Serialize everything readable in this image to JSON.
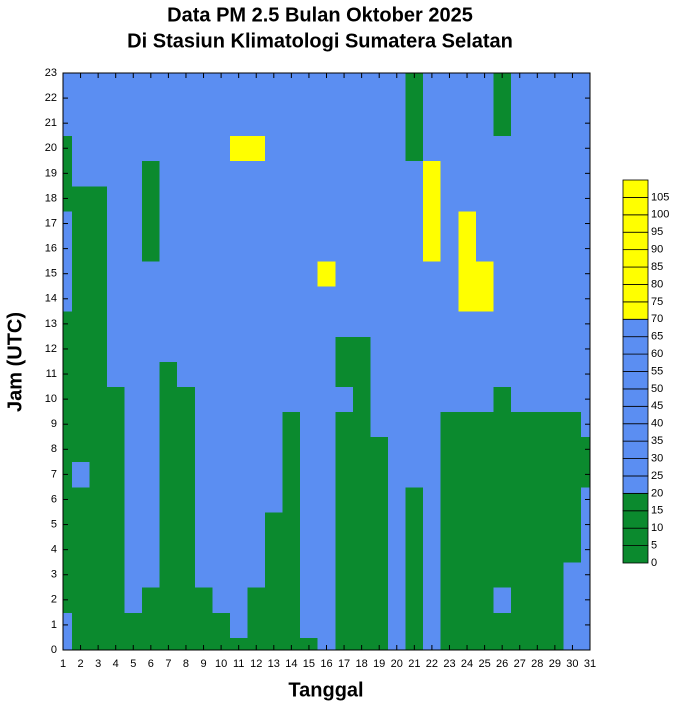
{
  "chart_data": {
    "type": "contour",
    "title": "Data PM 2.5 Bulan Oktober 2025",
    "subtitle": "Di Stasiun Klimatologi Sumatera Selatan",
    "x_label": "Tanggal",
    "y_label": "Jam (UTC)",
    "x": [
      1,
      2,
      3,
      4,
      5,
      6,
      7,
      8,
      9,
      10,
      11,
      12,
      13,
      14,
      15,
      16,
      17,
      18,
      19,
      20,
      21,
      22,
      23,
      24,
      25,
      26,
      27,
      28,
      29,
      30,
      31
    ],
    "y": [
      0,
      1,
      2,
      3,
      4,
      5,
      6,
      7,
      8,
      9,
      10,
      11,
      12,
      13,
      14,
      15,
      16,
      17,
      18,
      19,
      20,
      21,
      22,
      23
    ],
    "xlim": [
      1,
      31
    ],
    "ylim": [
      0,
      23
    ],
    "xticks": [
      1,
      2,
      3,
      4,
      5,
      6,
      7,
      8,
      9,
      10,
      11,
      12,
      13,
      14,
      15,
      16,
      17,
      18,
      19,
      20,
      21,
      22,
      23,
      24,
      25,
      26,
      27,
      28,
      29,
      30,
      31
    ],
    "yticks": [
      0,
      1,
      2,
      3,
      4,
      5,
      6,
      7,
      8,
      9,
      10,
      11,
      12,
      13,
      14,
      15,
      16,
      17,
      18,
      19,
      20,
      21,
      22,
      23
    ],
    "levels": [
      0,
      5,
      10,
      15,
      20,
      25,
      30,
      35,
      40,
      45,
      50,
      55,
      60,
      65,
      70,
      75,
      80,
      85,
      90,
      95,
      100,
      105
    ],
    "level_colors": [
      "#0b8a2e",
      "#0b8a2e",
      "#0b8a2e",
      "#0b8a2e",
      "#5b8ef2",
      "#5b8ef2",
      "#5b8ef2",
      "#5b8ef2",
      "#5b8ef2",
      "#5b8ef2",
      "#5b8ef2",
      "#5b8ef2",
      "#5b8ef2",
      "#5b8ef2",
      "#ffff00",
      "#ffff00",
      "#ffff00",
      "#ffff00",
      "#ffff00",
      "#ffff00",
      "#ffff00",
      "#ffff00"
    ],
    "z": [
      [
        25,
        12,
        10,
        3,
        14,
        15,
        14,
        12,
        6,
        12,
        18,
        14,
        14,
        18,
        16,
        22,
        14,
        15,
        16,
        30,
        15,
        22,
        14,
        4,
        15,
        16,
        14,
        14,
        15,
        28,
        26
      ],
      [
        22,
        12,
        11,
        8,
        15,
        16,
        15,
        13,
        12,
        18,
        22,
        16,
        15,
        18,
        22,
        26,
        15,
        15,
        17,
        32,
        16,
        24,
        15,
        10,
        15,
        17,
        15,
        15,
        16,
        30,
        28
      ],
      [
        18,
        12,
        12,
        12,
        22,
        18,
        15,
        14,
        16,
        22,
        28,
        18,
        15,
        18,
        25,
        30,
        16,
        16,
        18,
        34,
        17,
        26,
        16,
        14,
        18,
        22,
        16,
        15,
        16,
        32,
        30
      ],
      [
        17,
        13,
        13,
        14,
        28,
        22,
        16,
        15,
        22,
        26,
        30,
        22,
        16,
        18,
        28,
        32,
        17,
        16,
        18,
        35,
        18,
        28,
        17,
        15,
        17,
        16,
        16,
        15,
        16,
        22,
        32
      ],
      [
        16,
        13,
        14,
        15,
        30,
        26,
        16,
        15,
        26,
        30,
        32,
        26,
        17,
        18,
        30,
        34,
        17,
        16,
        18,
        34,
        18,
        30,
        18,
        16,
        18,
        17,
        16,
        16,
        17,
        18,
        30
      ],
      [
        16,
        14,
        14,
        16,
        32,
        28,
        17,
        16,
        28,
        32,
        34,
        28,
        18,
        18,
        32,
        35,
        18,
        17,
        18,
        33,
        18,
        30,
        18,
        16,
        17,
        17,
        16,
        16,
        17,
        16,
        26
      ],
      [
        16,
        16,
        14,
        17,
        32,
        30,
        17,
        16,
        30,
        33,
        35,
        30,
        20,
        18,
        30,
        34,
        18,
        17,
        18,
        32,
        19,
        30,
        18,
        16,
        17,
        17,
        17,
        16,
        17,
        16,
        20
      ],
      [
        17,
        24,
        15,
        18,
        30,
        30,
        17,
        16,
        32,
        34,
        35,
        32,
        22,
        18,
        26,
        30,
        18,
        17,
        18,
        30,
        20,
        30,
        18,
        17,
        17,
        17,
        17,
        17,
        17,
        16,
        18
      ],
      [
        17,
        16,
        15,
        18,
        28,
        28,
        17,
        16,
        32,
        34,
        36,
        34,
        24,
        19,
        24,
        26,
        18,
        18,
        19,
        28,
        22,
        30,
        18,
        17,
        17,
        17,
        17,
        17,
        17,
        17,
        18
      ],
      [
        17,
        16,
        15,
        18,
        26,
        26,
        17,
        17,
        33,
        35,
        36,
        35,
        26,
        19,
        22,
        24,
        19,
        18,
        22,
        26,
        24,
        32,
        19,
        18,
        18,
        17,
        17,
        18,
        18,
        18,
        24
      ],
      [
        18,
        16,
        16,
        18,
        26,
        24,
        18,
        17,
        34,
        36,
        38,
        36,
        28,
        20,
        24,
        26,
        20,
        19,
        26,
        24,
        26,
        34,
        24,
        22,
        20,
        18,
        24,
        30,
        28,
        28,
        30
      ],
      [
        18,
        17,
        16,
        20,
        28,
        26,
        18,
        20,
        36,
        38,
        40,
        38,
        30,
        20,
        26,
        28,
        18,
        16,
        30,
        26,
        25,
        36,
        28,
        28,
        24,
        20,
        28,
        34,
        32,
        30,
        32
      ],
      [
        18,
        17,
        16,
        24,
        30,
        28,
        22,
        26,
        38,
        40,
        42,
        40,
        34,
        22,
        30,
        32,
        18,
        16,
        32,
        28,
        24,
        40,
        34,
        40,
        30,
        22,
        30,
        34,
        32,
        30,
        32
      ],
      [
        18,
        17,
        17,
        26,
        32,
        30,
        26,
        30,
        40,
        42,
        44,
        42,
        38,
        30,
        36,
        40,
        22,
        20,
        34,
        30,
        22,
        44,
        40,
        60,
        50,
        26,
        30,
        32,
        30,
        28,
        32
      ],
      [
        20,
        17,
        18,
        28,
        34,
        32,
        30,
        34,
        40,
        44,
        46,
        44,
        40,
        36,
        40,
        50,
        30,
        26,
        36,
        30,
        20,
        48,
        46,
        70,
        85,
        32,
        34,
        30,
        28,
        26,
        30
      ],
      [
        30,
        18,
        18,
        30,
        36,
        34,
        32,
        36,
        42,
        46,
        48,
        46,
        44,
        40,
        46,
        72,
        34,
        28,
        36,
        28,
        20,
        55,
        55,
        75,
        70,
        36,
        36,
        28,
        26,
        24,
        30
      ],
      [
        34,
        18,
        18,
        30,
        36,
        16,
        30,
        38,
        44,
        46,
        48,
        46,
        44,
        42,
        48,
        60,
        36,
        30,
        34,
        26,
        20,
        78,
        60,
        90,
        60,
        34,
        30,
        26,
        24,
        22,
        28
      ],
      [
        24,
        17,
        18,
        30,
        34,
        12,
        28,
        40,
        46,
        48,
        50,
        48,
        46,
        40,
        46,
        50,
        38,
        32,
        34,
        26,
        20,
        70,
        54,
        75,
        50,
        32,
        28,
        24,
        22,
        20,
        26
      ],
      [
        18,
        17,
        18,
        30,
        30,
        12,
        26,
        42,
        46,
        50,
        54,
        50,
        46,
        38,
        42,
        44,
        38,
        34,
        34,
        26,
        20,
        90,
        50,
        50,
        40,
        28,
        26,
        22,
        20,
        20,
        26
      ],
      [
        16,
        20,
        20,
        30,
        30,
        14,
        26,
        42,
        46,
        50,
        60,
        62,
        48,
        36,
        40,
        40,
        36,
        34,
        34,
        26,
        20,
        95,
        48,
        44,
        34,
        24,
        24,
        22,
        20,
        22,
        28
      ],
      [
        18,
        30,
        26,
        30,
        28,
        22,
        28,
        40,
        44,
        50,
        72,
        95,
        50,
        36,
        38,
        22,
        36,
        34,
        32,
        28,
        18,
        60,
        44,
        38,
        26,
        20,
        22,
        24,
        22,
        24,
        30
      ],
      [
        22,
        34,
        30,
        32,
        28,
        26,
        30,
        38,
        42,
        48,
        56,
        58,
        48,
        38,
        38,
        24,
        36,
        34,
        30,
        28,
        18,
        44,
        40,
        34,
        22,
        18,
        20,
        26,
        24,
        26,
        32
      ],
      [
        26,
        32,
        32,
        32,
        28,
        28,
        32,
        36,
        40,
        44,
        46,
        46,
        44,
        40,
        38,
        34,
        36,
        32,
        30,
        26,
        18,
        40,
        38,
        30,
        20,
        18,
        20,
        24,
        24,
        26,
        34
      ],
      [
        28,
        30,
        32,
        32,
        28,
        30,
        32,
        34,
        38,
        40,
        42,
        42,
        42,
        40,
        38,
        34,
        34,
        30,
        28,
        24,
        18,
        36,
        34,
        28,
        20,
        18,
        22,
        22,
        24,
        26,
        34
      ]
    ]
  }
}
